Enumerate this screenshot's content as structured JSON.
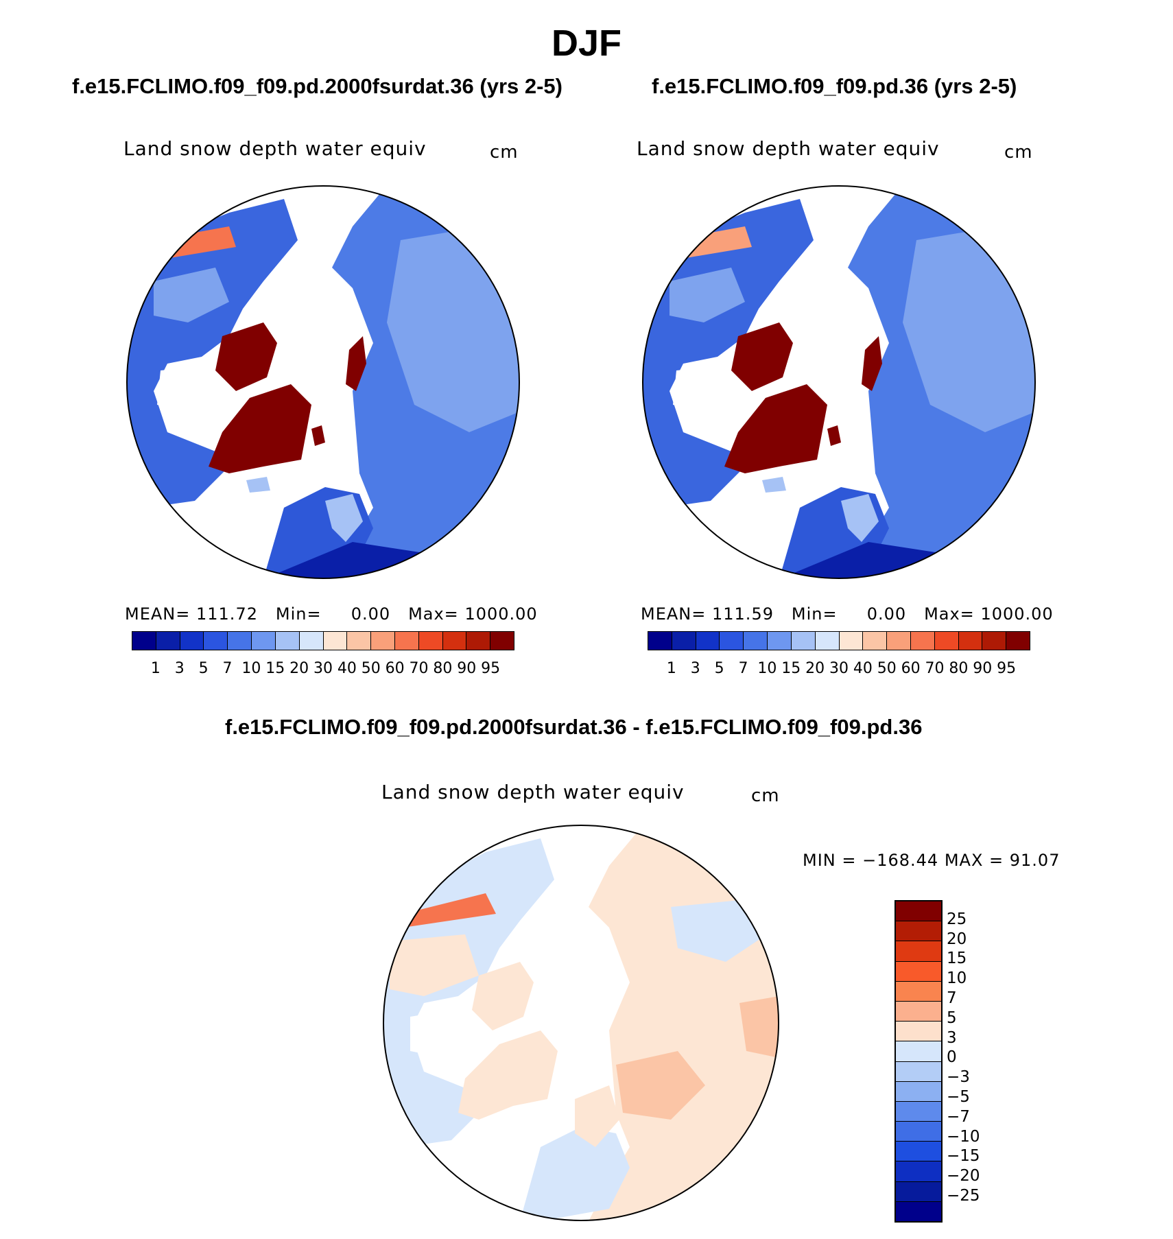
{
  "title": "DJF",
  "panel_left": {
    "case_title": "f.e15.FCLIMO.f09_f09.pd.2000fsurdat.36 (yrs 2-5)",
    "plot_title": "Land snow depth water equiv",
    "units": "cm",
    "stats": {
      "mean_label": "MEAN=",
      "mean": "111.72",
      "min_label": "Min=",
      "min": "0.00",
      "max_label": "Max=",
      "max": "1000.00"
    }
  },
  "panel_right": {
    "case_title": "f.e15.FCLIMO.f09_f09.pd.36 (yrs 2-5)",
    "plot_title": "Land snow depth water equiv",
    "units": "cm",
    "stats": {
      "mean_label": "MEAN=",
      "mean": "111.59",
      "min_label": "Min=",
      "min": "0.00",
      "max_label": "Max=",
      "max": "1000.00"
    }
  },
  "panel_diff": {
    "case_title": "f.e15.FCLIMO.f09_f09.pd.2000fsurdat.36 - f.e15.FCLIMO.f09_f09.pd.36",
    "plot_title": "Land snow depth water equiv",
    "units": "cm",
    "minmax": "MIN = −168.44 MAX =   91.07"
  },
  "colorbar_abs": {
    "labels": [
      "1",
      "3",
      "5",
      "7",
      "10",
      "15",
      "20",
      "30",
      "40",
      "50",
      "60",
      "70",
      "80",
      "90",
      "95"
    ],
    "colors": [
      "#00008b",
      "#0a1fa8",
      "#1233c8",
      "#2b55e0",
      "#4674e8",
      "#6e97f0",
      "#a6c2f5",
      "#d6e6fb",
      "#fde6d4",
      "#fbc5a6",
      "#f9a07a",
      "#f6744e",
      "#ee4a25",
      "#d4300f",
      "#ae1a05",
      "#800000"
    ]
  },
  "colorbar_diff": {
    "labels": [
      "25",
      "20",
      "15",
      "10",
      "7",
      "5",
      "3",
      "0",
      "−3",
      "−5",
      "−7",
      "−10",
      "−15",
      "−20",
      "−25"
    ],
    "colors": [
      "#800000",
      "#b31d05",
      "#df3a12",
      "#f85a2a",
      "#f9844f",
      "#fbb08e",
      "#fde0cc",
      "#d6e6fb",
      "#b3cdf6",
      "#8cb0f2",
      "#5e8aec",
      "#3f6ee6",
      "#1e4fe0",
      "#0e2fc2",
      "#061b9c",
      "#00008b"
    ]
  },
  "chart_data": [
    {
      "type": "heatmap",
      "title": "Land snow depth water equiv",
      "subtitle": "f.e15.FCLIMO.f09_f09.pd.2000fsurdat.36 (yrs 2-5)",
      "units": "cm",
      "mean": 111.72,
      "min": 0.0,
      "max": 1000.0,
      "contour_levels": [
        1,
        3,
        5,
        7,
        10,
        15,
        20,
        30,
        40,
        50,
        60,
        70,
        80,
        90,
        95
      ]
    },
    {
      "type": "heatmap",
      "title": "Land snow depth water equiv",
      "subtitle": "f.e15.FCLIMO.f09_f09.pd.36 (yrs 2-5)",
      "units": "cm",
      "mean": 111.59,
      "min": 0.0,
      "max": 1000.0,
      "contour_levels": [
        1,
        3,
        5,
        7,
        10,
        15,
        20,
        30,
        40,
        50,
        60,
        70,
        80,
        90,
        95
      ]
    },
    {
      "type": "heatmap",
      "title": "Land snow depth water equiv",
      "subtitle": "f.e15.FCLIMO.f09_f09.pd.2000fsurdat.36 - f.e15.FCLIMO.f09_f09.pd.36",
      "units": "cm",
      "min": -168.44,
      "max": 91.07,
      "contour_levels": [
        -25,
        -20,
        -15,
        -10,
        -7,
        -5,
        -3,
        0,
        3,
        5,
        7,
        10,
        15,
        20,
        25
      ]
    }
  ]
}
